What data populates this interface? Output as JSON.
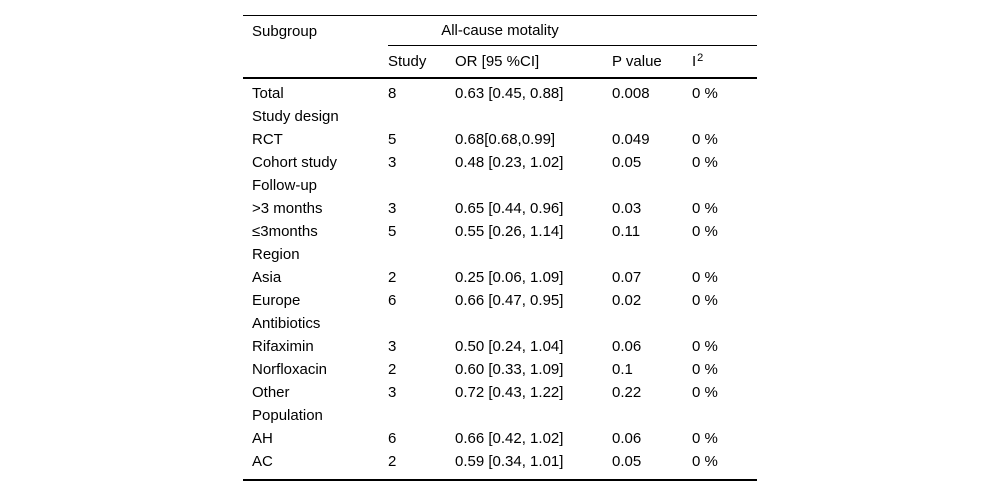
{
  "page": {
    "background": "#ffffff",
    "text_color": "#000000"
  },
  "table": {
    "corner_header": "Subgroup",
    "span_header": "All-cause motality",
    "columns": {
      "study": "Study",
      "or_ci": "OR [95 %CI]",
      "p_value": "P value",
      "i2_base": "I",
      "i2_sup": "2"
    },
    "rows": [
      {
        "subgroup": "Total",
        "study": "8",
        "or_ci": "0.63 [0.45, 0.88]",
        "p": "0.008",
        "i2": "0 %"
      },
      {
        "subgroup": "Study design",
        "study": "",
        "or_ci": "",
        "p": "",
        "i2": ""
      },
      {
        "subgroup": "RCT",
        "study": "5",
        "or_ci": "0.68[0.68,0.99]",
        "p": "0.049",
        "i2": "0 %"
      },
      {
        "subgroup": "Cohort study",
        "study": "3",
        "or_ci": "0.48 [0.23, 1.02]",
        "p": "0.05",
        "i2": "0 %"
      },
      {
        "subgroup": "Follow-up",
        "study": "",
        "or_ci": "",
        "p": "",
        "i2": ""
      },
      {
        "subgroup": ">3 months",
        "study": "3",
        "or_ci": "0.65 [0.44, 0.96]",
        "p": "0.03",
        "i2": "0 %"
      },
      {
        "subgroup": "≤3months",
        "study": "5",
        "or_ci": "0.55 [0.26, 1.14]",
        "p": "0.11",
        "i2": "0 %"
      },
      {
        "subgroup": "Region",
        "study": "",
        "or_ci": "",
        "p": "",
        "i2": ""
      },
      {
        "subgroup": "Asia",
        "study": "2",
        "or_ci": "0.25 [0.06, 1.09]",
        "p": "0.07",
        "i2": "0 %"
      },
      {
        "subgroup": "Europe",
        "study": "6",
        "or_ci": "0.66 [0.47, 0.95]",
        "p": "0.02",
        "i2": "0 %"
      },
      {
        "subgroup": "Antibiotics",
        "study": "",
        "or_ci": "",
        "p": "",
        "i2": ""
      },
      {
        "subgroup": "Rifaximin",
        "study": "3",
        "or_ci": "0.50 [0.24, 1.04]",
        "p": "0.06",
        "i2": "0 %"
      },
      {
        "subgroup": "Norfloxacin",
        "study": "2",
        "or_ci": "0.60 [0.33, 1.09]",
        "p": "0.1",
        "i2": "0 %"
      },
      {
        "subgroup": "Other",
        "study": "3",
        "or_ci": "0.72 [0.43, 1.22]",
        "p": "0.22",
        "i2": "0 %"
      },
      {
        "subgroup": "Population",
        "study": "",
        "or_ci": "",
        "p": "",
        "i2": ""
      },
      {
        "subgroup": "AH",
        "study": "6",
        "or_ci": "0.66 [0.42, 1.02]",
        "p": "0.06",
        "i2": "0 %"
      },
      {
        "subgroup": "AC",
        "study": "2",
        "or_ci": "0.59 [0.34, 1.01]",
        "p": "0.05",
        "i2": "0 %"
      }
    ]
  }
}
